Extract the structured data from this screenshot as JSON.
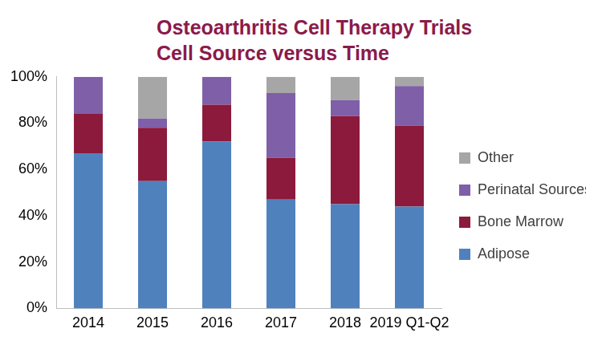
{
  "chart_data": {
    "type": "bar",
    "title": [
      "Osteoarthritis Cell Therapy Trials",
      "Cell Source versus Time"
    ],
    "categories": [
      "2014",
      "2015",
      "2016",
      "2017",
      "2018",
      "2019 Q1-Q2"
    ],
    "series": [
      {
        "name": "Adipose",
        "color": "#4f81bd",
        "values": [
          67,
          55,
          72,
          47,
          45,
          44
        ]
      },
      {
        "name": "Bone Marrow",
        "color": "#8b1a3c",
        "values": [
          17,
          23,
          16,
          18,
          38,
          35
        ]
      },
      {
        "name": "Perinatal Sources",
        "color": "#7f5fa8",
        "values": [
          16,
          4,
          12,
          28,
          7,
          17
        ]
      },
      {
        "name": "Other",
        "color": "#a6a6a6",
        "values": [
          0,
          18,
          0,
          7,
          10,
          4
        ]
      }
    ],
    "ylim": [
      0,
      100
    ],
    "yticks": [
      {
        "value": 0,
        "label": "0%"
      },
      {
        "value": 20,
        "label": "20%"
      },
      {
        "value": 40,
        "label": "40%"
      },
      {
        "value": 60,
        "label": "60%"
      },
      {
        "value": 80,
        "label": "80%"
      },
      {
        "value": 100,
        "label": "100%"
      }
    ],
    "stacked": true,
    "grid": false,
    "legend": "right"
  }
}
